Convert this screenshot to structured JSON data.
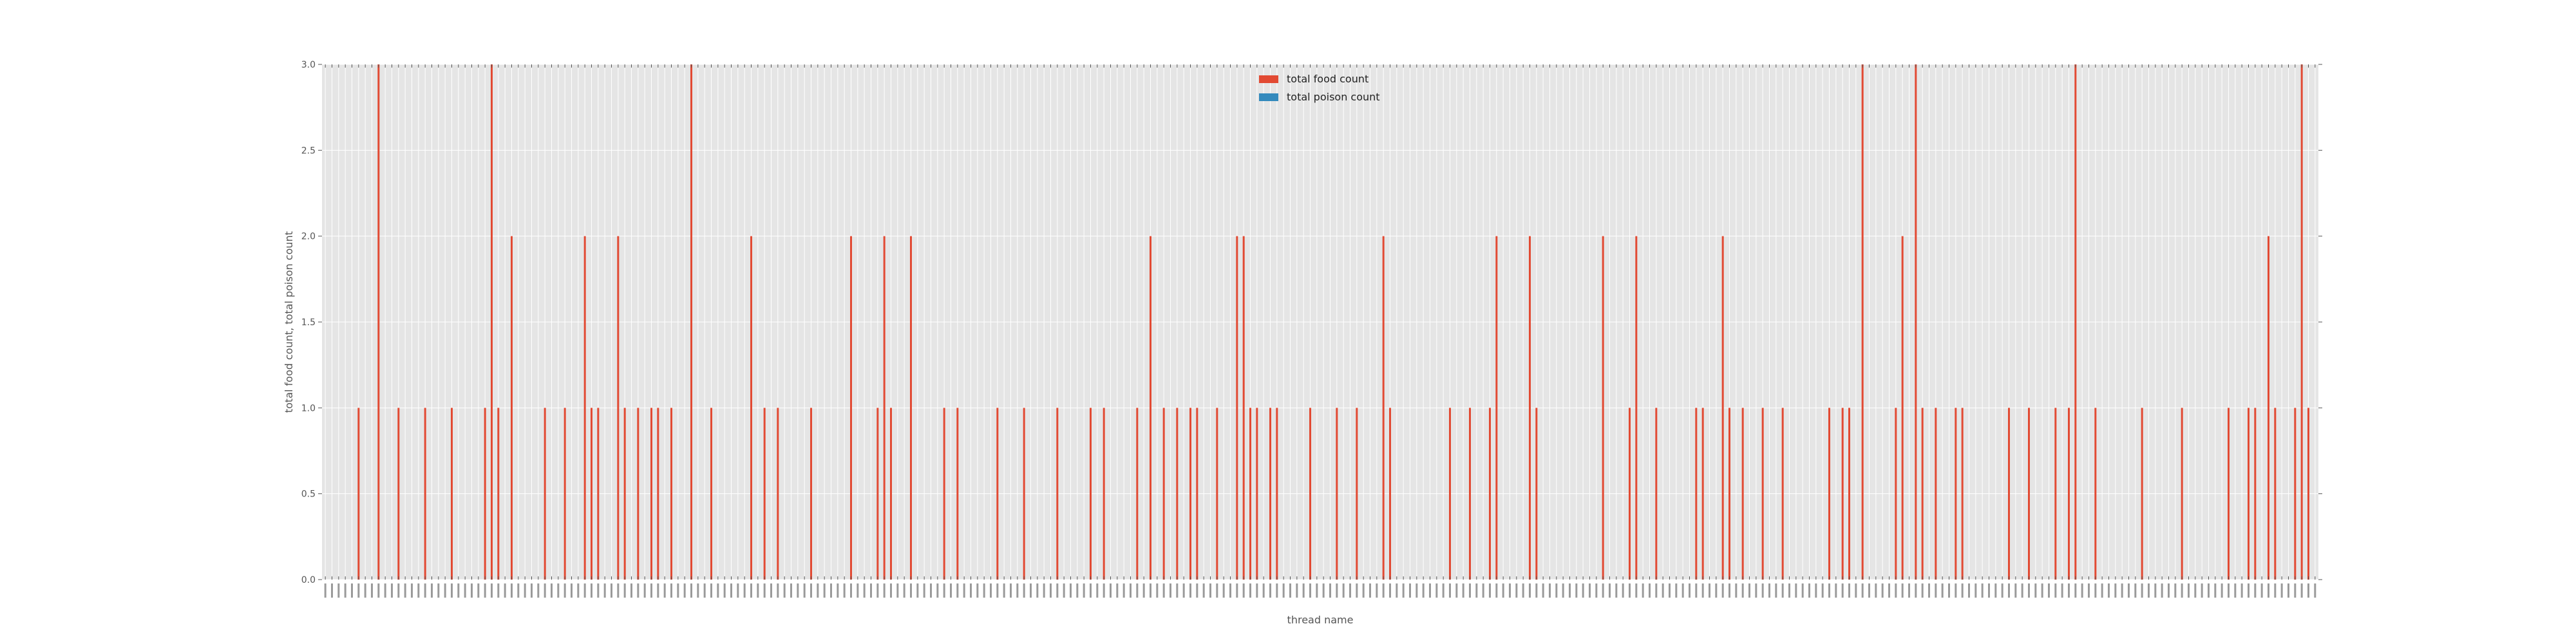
{
  "chart_data": {
    "type": "bar",
    "title": "",
    "xlabel": "thread name",
    "ylabel": "total food count, total poison count",
    "ylim": [
      0,
      3
    ],
    "yticks": [
      "0.0",
      "0.5",
      "1.0",
      "1.5",
      "2.0",
      "2.5",
      "3.0"
    ],
    "grid": true,
    "legend_position": "top-center",
    "category_count": 300,
    "nonzero_food_counts": [
      [
        5,
        1
      ],
      [
        8,
        3
      ],
      [
        11,
        1
      ],
      [
        15,
        1
      ],
      [
        19,
        1
      ],
      [
        24,
        1
      ],
      [
        25,
        3
      ],
      [
        26,
        1
      ],
      [
        28,
        2
      ],
      [
        33,
        1
      ],
      [
        36,
        1
      ],
      [
        39,
        2
      ],
      [
        40,
        1
      ],
      [
        41,
        1
      ],
      [
        44,
        2
      ],
      [
        45,
        1
      ],
      [
        47,
        1
      ],
      [
        49,
        1
      ],
      [
        50,
        1
      ],
      [
        52,
        1
      ],
      [
        55,
        3
      ],
      [
        58,
        1
      ],
      [
        64,
        2
      ],
      [
        66,
        1
      ],
      [
        68,
        1
      ],
      [
        73,
        1
      ],
      [
        79,
        2
      ],
      [
        83,
        1
      ],
      [
        84,
        2
      ],
      [
        85,
        1
      ],
      [
        88,
        2
      ],
      [
        93,
        1
      ],
      [
        95,
        1
      ],
      [
        101,
        1
      ],
      [
        105,
        1
      ],
      [
        110,
        1
      ],
      [
        115,
        1
      ],
      [
        117,
        1
      ],
      [
        122,
        1
      ],
      [
        124,
        2
      ],
      [
        126,
        1
      ],
      [
        128,
        1
      ],
      [
        130,
        1
      ],
      [
        131,
        1
      ],
      [
        134,
        1
      ],
      [
        137,
        2
      ],
      [
        138,
        2
      ],
      [
        139,
        1
      ],
      [
        140,
        1
      ],
      [
        142,
        1
      ],
      [
        143,
        1
      ],
      [
        148,
        1
      ],
      [
        152,
        1
      ],
      [
        155,
        1
      ],
      [
        159,
        2
      ],
      [
        160,
        1
      ],
      [
        169,
        1
      ],
      [
        172,
        1
      ],
      [
        175,
        1
      ],
      [
        176,
        2
      ],
      [
        181,
        2
      ],
      [
        182,
        1
      ],
      [
        192,
        2
      ],
      [
        196,
        1
      ],
      [
        197,
        2
      ],
      [
        200,
        1
      ],
      [
        206,
        1
      ],
      [
        207,
        1
      ],
      [
        210,
        2
      ],
      [
        211,
        1
      ],
      [
        213,
        1
      ],
      [
        216,
        1
      ],
      [
        219,
        1
      ],
      [
        226,
        1
      ],
      [
        228,
        1
      ],
      [
        229,
        1
      ],
      [
        231,
        3
      ],
      [
        236,
        1
      ],
      [
        237,
        2
      ],
      [
        239,
        3
      ],
      [
        240,
        1
      ],
      [
        242,
        1
      ],
      [
        245,
        1
      ],
      [
        246,
        1
      ],
      [
        253,
        1
      ],
      [
        256,
        1
      ],
      [
        260,
        1
      ],
      [
        262,
        1
      ],
      [
        263,
        3
      ],
      [
        266,
        1
      ],
      [
        273,
        1
      ],
      [
        279,
        1
      ],
      [
        286,
        1
      ],
      [
        289,
        1
      ],
      [
        290,
        1
      ],
      [
        292,
        2
      ],
      [
        293,
        1
      ],
      [
        296,
        1
      ],
      [
        297,
        3
      ],
      [
        298,
        1
      ]
    ],
    "series": [
      {
        "name": "total food count",
        "color": "#e24a33"
      },
      {
        "name": "total poison count",
        "color": "#348abd"
      }
    ]
  }
}
